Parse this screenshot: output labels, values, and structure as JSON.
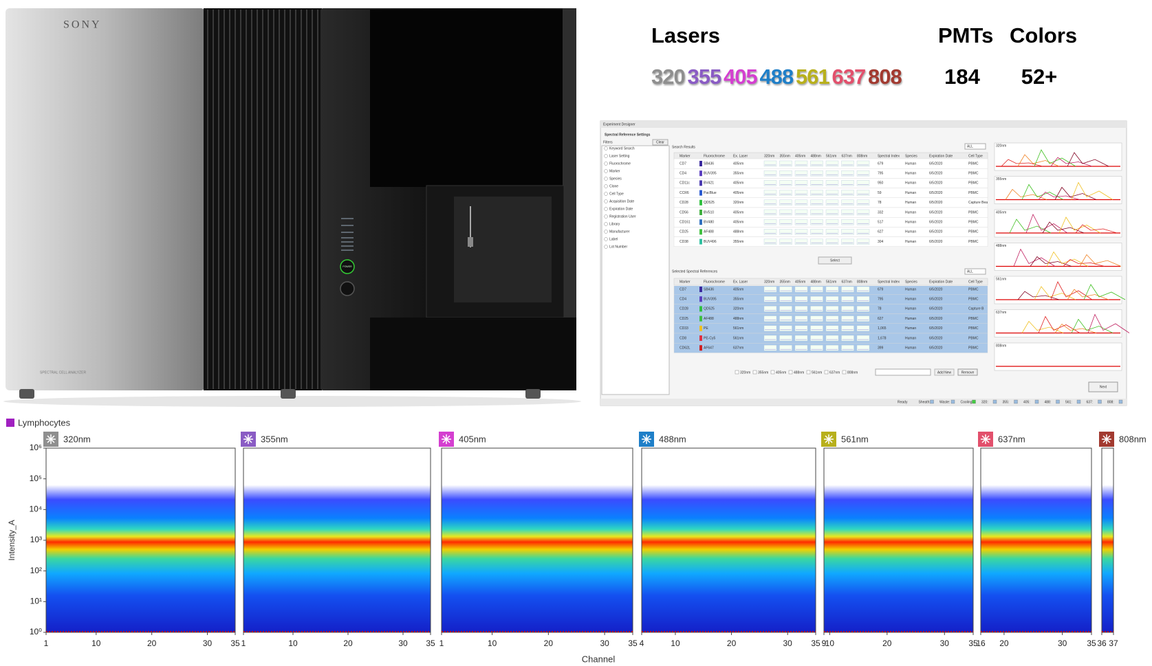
{
  "product": {
    "brand": "SONY",
    "model": "SPECTRAL CELL ANALYZER",
    "button": "POWER"
  },
  "specs": {
    "lasers_label": "Lasers",
    "lasers": [
      {
        "label": "320",
        "color": "#8f8f8f"
      },
      {
        "label": "355",
        "color": "#8a5cc4"
      },
      {
        "label": "405",
        "color": "#d43fd0"
      },
      {
        "label": "488",
        "color": "#1f7fc8"
      },
      {
        "label": "561",
        "color": "#b8b01c"
      },
      {
        "label": "637",
        "color": "#e2506c"
      },
      {
        "label": "808",
        "color": "#a23a30"
      }
    ],
    "pmts_label": "PMTs",
    "pmts": 184,
    "colors_label": "Colors",
    "colors": "52+"
  },
  "software": {
    "window_title": "Experiment Designer",
    "heading": "Spectral Reference Settings",
    "filters_label": "Filters",
    "clear": "Clear",
    "filters": [
      "Keyword Search",
      "Laser Setting",
      "Fluorochrome",
      "Marker",
      "Species",
      "Clone",
      "Cell Type",
      "Acquisition Date",
      "Expiration Date",
      "Registration User",
      "Library",
      "Manufacturer",
      "Label",
      "Lot Number"
    ],
    "search_label": "Search Results",
    "all": "ALL",
    "columns": [
      "Marker",
      "Fluorochrome",
      "Ex. Laser",
      "320nm",
      "355nm",
      "405nm",
      "488nm",
      "561nm",
      "637nm",
      "808nm",
      "Spectral Index",
      "Species",
      "Expiration Date",
      "Cell Type"
    ],
    "search_rows": [
      {
        "marker": "CD7",
        "fluorochrome": "SB436",
        "color": "#3b2a9e",
        "laser": "405nm",
        "index": 679,
        "species": "Human",
        "date": "6/5/2020",
        "cell_type": "PBMC"
      },
      {
        "marker": "CD4",
        "fluorochrome": "BUV395",
        "color": "#5b3fc0",
        "laser": "355nm",
        "index": 795,
        "species": "Human",
        "date": "6/5/2020",
        "cell_type": "PBMC"
      },
      {
        "marker": "CD11c",
        "fluorochrome": "BV421",
        "color": "#4a3ab0",
        "laser": "405nm",
        "index": 950,
        "species": "Human",
        "date": "6/5/2020",
        "cell_type": "PBMC"
      },
      {
        "marker": "CCR6",
        "fluorochrome": "PacBlue",
        "color": "#2a5ad0",
        "laser": "405nm",
        "index": 59,
        "species": "Human",
        "date": "6/5/2020",
        "cell_type": "PBMC"
      },
      {
        "marker": "CD28",
        "fluorochrome": "QD525",
        "color": "#30c040",
        "laser": "320nm",
        "index": 78,
        "species": "Human",
        "date": "6/5/2020",
        "cell_type": "Capture Bea"
      },
      {
        "marker": "CD56",
        "fluorochrome": "BV510",
        "color": "#40b040",
        "laser": "405nm",
        "index": 332,
        "species": "Human",
        "date": "6/5/2020",
        "cell_type": "PBMC"
      },
      {
        "marker": "CD161",
        "fluorochrome": "BV480",
        "color": "#3070c0",
        "laser": "405nm",
        "index": 517,
        "species": "Human",
        "date": "6/5/2020",
        "cell_type": "PBMC"
      },
      {
        "marker": "CD25",
        "fluorochrome": "AF488",
        "color": "#40c040",
        "laser": "488nm",
        "index": 627,
        "species": "Human",
        "date": "6/5/2020",
        "cell_type": "PBMC"
      },
      {
        "marker": "CD38",
        "fluorochrome": "BUV496",
        "color": "#30c0a0",
        "laser": "355nm",
        "index": 304,
        "species": "Human",
        "date": "6/5/2020",
        "cell_type": "PBMC"
      }
    ],
    "select": "Select",
    "selected_label": "Selected Spectral References",
    "selected_rows": [
      {
        "marker": "CD7",
        "fluorochrome": "SB436",
        "color": "#3b2a9e",
        "laser": "405nm",
        "index": 679,
        "species": "Human",
        "date": "6/5/2020",
        "cell_type": "PBMC"
      },
      {
        "marker": "CD4",
        "fluorochrome": "BUV395",
        "color": "#5b3fc0",
        "laser": "355nm",
        "index": 795,
        "species": "Human",
        "date": "6/5/2020",
        "cell_type": "PBMC"
      },
      {
        "marker": "CD28",
        "fluorochrome": "QD525",
        "color": "#30c040",
        "laser": "320nm",
        "index": 78,
        "species": "Human",
        "date": "6/5/2020",
        "cell_type": "Capture B"
      },
      {
        "marker": "CD25",
        "fluorochrome": "AF488",
        "color": "#40c040",
        "laser": "488nm",
        "index": 627,
        "species": "Human",
        "date": "6/5/2020",
        "cell_type": "PBMC"
      },
      {
        "marker": "CD33",
        "fluorochrome": "PE",
        "color": "#f0c020",
        "laser": "561nm",
        "index": "1,065",
        "species": "Human",
        "date": "6/5/2020",
        "cell_type": "PBMC"
      },
      {
        "marker": "CD8",
        "fluorochrome": "PE-Cy5",
        "color": "#e03040",
        "laser": "561nm",
        "index": "1,678",
        "species": "Human",
        "date": "6/5/2020",
        "cell_type": "PBMC"
      },
      {
        "marker": "CD62L",
        "fluorochrome": "AF647",
        "color": "#d02020",
        "laser": "637nm",
        "index": 399,
        "species": "Human",
        "date": "6/5/2020",
        "cell_type": "PBMC"
      }
    ],
    "laser_filters": [
      "320nm",
      "355nm",
      "405nm",
      "488nm",
      "561nm",
      "637nm",
      "808nm"
    ],
    "add_new": "Add New",
    "remove": "Remove",
    "next": "Next",
    "status": [
      "Ready",
      "Sheath:",
      "Waste:",
      "Cooling:",
      "320:",
      "355:",
      "405:",
      "488:",
      "561:",
      "637:",
      "808:"
    ],
    "spectra_labels": [
      "320nm",
      "355nm",
      "405nm",
      "488nm",
      "561nm",
      "637nm",
      "808nm"
    ]
  },
  "plots": {
    "legend": "Lymphocytes",
    "legend_color": "#a020c0",
    "ylabel": "Intensity_A",
    "xlabel": "Channel"
  },
  "chart_data": [
    {
      "type": "heatmap",
      "title": "320nm",
      "color": "#8f8f8f",
      "xlim": [
        1,
        35
      ],
      "xticks": [
        1,
        10,
        20,
        30,
        35
      ],
      "ylim": [
        1,
        1000000
      ],
      "log_scale": true,
      "yticks": [
        {
          "value": 1,
          "label": "10⁰"
        },
        {
          "value": 10,
          "label": "10¹"
        },
        {
          "value": 100,
          "label": "10²"
        },
        {
          "value": 1000,
          "label": "10³"
        },
        {
          "value": 10000,
          "label": "10⁴"
        },
        {
          "value": 100000,
          "label": "10⁵"
        },
        {
          "value": 1000000,
          "label": "10⁶"
        }
      ]
    },
    {
      "type": "heatmap",
      "title": "355nm",
      "color": "#8a5cc4",
      "xlim": [
        1,
        35
      ],
      "xticks": [
        1,
        10,
        20,
        30,
        35
      ],
      "ylim": [
        1,
        1000000
      ],
      "log_scale": true
    },
    {
      "type": "heatmap",
      "title": "405nm",
      "color": "#d43fd0",
      "xlim": [
        1,
        35
      ],
      "xticks": [
        1,
        10,
        20,
        30,
        35
      ],
      "ylim": [
        1,
        1000000
      ],
      "log_scale": true
    },
    {
      "type": "heatmap",
      "title": "488nm",
      "color": "#1f7fc8",
      "xlim": [
        4,
        35
      ],
      "xticks": [
        4,
        10,
        20,
        30,
        35
      ],
      "ylim": [
        1,
        1000000
      ],
      "log_scale": true
    },
    {
      "type": "heatmap",
      "title": "561nm",
      "color": "#b8b01c",
      "xlim": [
        9,
        35
      ],
      "xticks": [
        9,
        10,
        20,
        30,
        35
      ],
      "ylim": [
        1,
        1000000
      ],
      "log_scale": true
    },
    {
      "type": "heatmap",
      "title": "637nm",
      "color": "#e2506c",
      "xlim": [
        16,
        35
      ],
      "xticks": [
        16,
        20,
        30,
        35
      ],
      "ylim": [
        1,
        1000000
      ],
      "log_scale": true
    },
    {
      "type": "heatmap",
      "title": "808nm",
      "color": "#a23a30",
      "xlim": [
        36,
        37
      ],
      "xticks": [
        36,
        37
      ],
      "ylim": [
        1,
        1000000
      ],
      "log_scale": true
    }
  ]
}
